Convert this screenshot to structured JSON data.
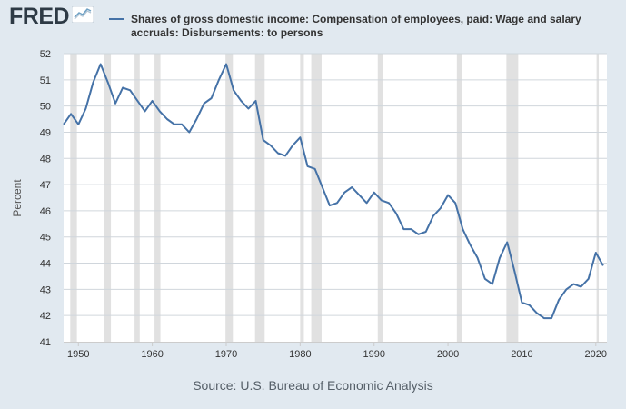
{
  "logo": {
    "text": "FRED",
    "badge_icon": "graph-line-icon"
  },
  "chart_data": {
    "type": "line",
    "title": "Shares of gross domestic income: Compensation of employees, paid: Wage and salary accruals: Disbursements: to persons",
    "xlabel": "",
    "ylabel": "Percent",
    "xlim": [
      1948,
      2021.5
    ],
    "ylim": [
      41,
      52
    ],
    "y_ticks": [
      41,
      42,
      43,
      44,
      45,
      46,
      47,
      48,
      49,
      50,
      51,
      52
    ],
    "x_ticks": [
      1950,
      1960,
      1970,
      1980,
      1990,
      2000,
      2010,
      2020
    ],
    "grid": true,
    "legend": "top",
    "series": [
      {
        "name": "Shares of gross domestic income: Compensation of employees, paid: Wage and salary accruals: Disbursements: to persons",
        "color": "#4572a7",
        "x": [
          1948,
          1949,
          1950,
          1951,
          1952,
          1953,
          1954,
          1955,
          1956,
          1957,
          1958,
          1959,
          1960,
          1961,
          1962,
          1963,
          1964,
          1965,
          1966,
          1967,
          1968,
          1969,
          1970,
          1971,
          1972,
          1973,
          1974,
          1975,
          1976,
          1977,
          1978,
          1979,
          1980,
          1981,
          1982,
          1983,
          1984,
          1985,
          1986,
          1987,
          1988,
          1989,
          1990,
          1991,
          1992,
          1993,
          1994,
          1995,
          1996,
          1997,
          1998,
          1999,
          2000,
          2001,
          2002,
          2003,
          2004,
          2005,
          2006,
          2007,
          2008,
          2009,
          2010,
          2011,
          2012,
          2013,
          2014,
          2015,
          2016,
          2017,
          2018,
          2019,
          2020,
          2021
        ],
        "values": [
          49.3,
          49.7,
          49.3,
          49.9,
          50.9,
          51.6,
          50.9,
          50.1,
          50.7,
          50.6,
          50.2,
          49.8,
          50.2,
          49.8,
          49.5,
          49.3,
          49.3,
          49.0,
          49.5,
          50.1,
          50.3,
          51.0,
          51.6,
          50.6,
          50.2,
          49.9,
          50.2,
          48.7,
          48.5,
          48.2,
          48.1,
          48.5,
          48.8,
          47.7,
          47.6,
          46.9,
          46.2,
          46.3,
          46.7,
          46.9,
          46.6,
          46.3,
          46.7,
          46.4,
          46.3,
          45.9,
          45.3,
          45.3,
          45.1,
          45.2,
          45.8,
          46.1,
          46.6,
          46.3,
          45.3,
          44.7,
          44.2,
          43.4,
          43.2,
          44.2,
          44.8,
          43.7,
          42.5,
          42.4,
          42.1,
          41.9,
          41.9,
          42.6,
          43.0,
          43.2,
          43.1,
          43.4,
          44.4,
          43.9
        ]
      }
    ],
    "recessions": [
      [
        1948.9,
        1949.8
      ],
      [
        1953.5,
        1954.4
      ],
      [
        1957.6,
        1958.3
      ],
      [
        1960.3,
        1961.1
      ],
      [
        1969.9,
        1970.9
      ],
      [
        1973.9,
        1975.2
      ],
      [
        1980.0,
        1980.5
      ],
      [
        1981.5,
        1982.9
      ],
      [
        1990.5,
        1991.2
      ],
      [
        2001.2,
        2001.9
      ],
      [
        2007.9,
        2009.5
      ],
      [
        2020.1,
        2020.4
      ]
    ],
    "source": "Source: U.S. Bureau of Economic Analysis"
  }
}
